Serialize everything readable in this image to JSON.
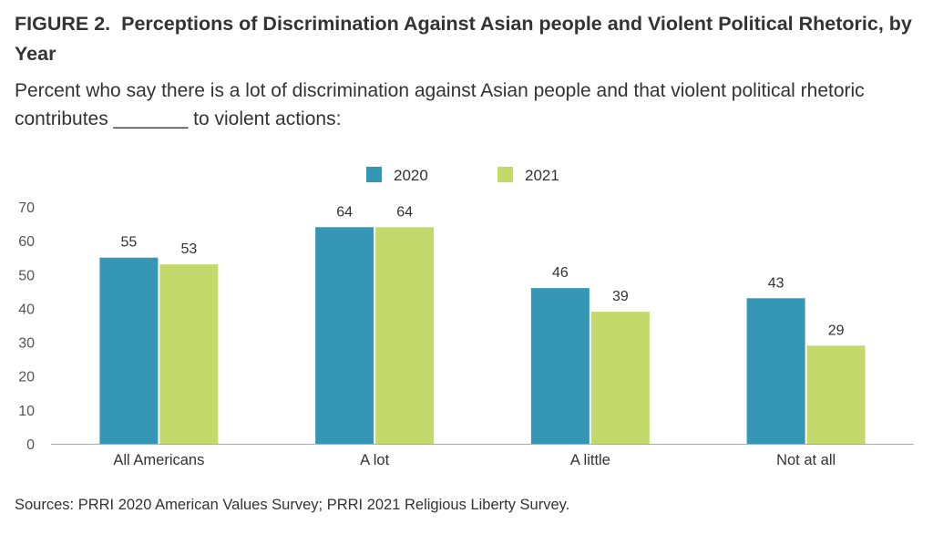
{
  "header": {
    "figure_label": "FIGURE 2.",
    "title": "Perceptions of Discrimination Against Asian people and Violent Political Rhetoric, by Year",
    "subtitle": "Percent who say there is a lot of discrimination against Asian people and that violent political rhetoric contributes _______ to violent actions:"
  },
  "chart_data": {
    "type": "bar",
    "categories": [
      "All Americans",
      "A lot",
      "A little",
      "Not at all"
    ],
    "series": [
      {
        "name": "2020",
        "color": "#3596b5",
        "values": [
          55,
          64,
          46,
          43
        ]
      },
      {
        "name": "2021",
        "color": "#c4d96b",
        "values": [
          53,
          64,
          39,
          29
        ]
      }
    ],
    "ylim": [
      0,
      70
    ],
    "yticks": [
      0,
      10,
      20,
      30,
      40,
      50,
      60,
      70
    ],
    "grid": false,
    "legend_position": "top-center"
  },
  "footer": {
    "source": "Sources: PRRI 2020 American Values Survey; PRRI 2021 Religious Liberty Survey."
  }
}
